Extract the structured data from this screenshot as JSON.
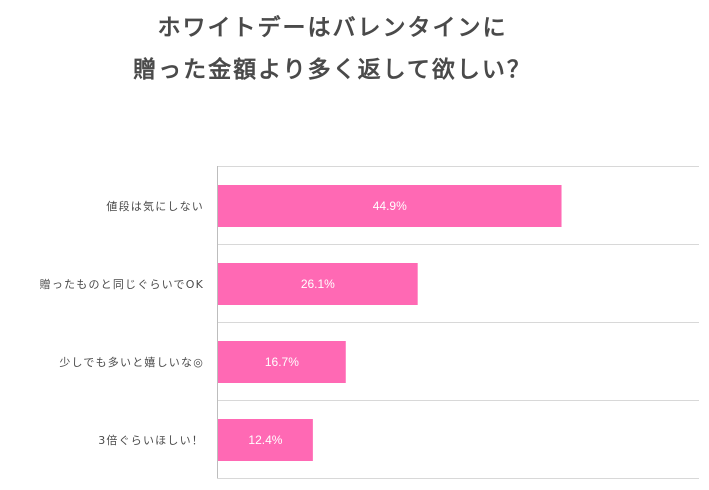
{
  "title_lines": [
    "ホワイトデーはバレンタインに",
    "贈った金額より多く返して欲しい？"
  ],
  "chart_data": {
    "type": "bar",
    "orientation": "horizontal",
    "categories": [
      "値段は気にしない",
      "贈ったものと同じぐらいでOK",
      "少しでも多いと嬉しいな◎",
      "3倍ぐらいほしい！"
    ],
    "values": [
      44.9,
      26.1,
      16.7,
      12.4
    ],
    "value_labels": [
      "44.9%",
      "26.1%",
      "16.7%",
      "12.4%"
    ],
    "unit": "%",
    "xlim": [
      0,
      63
    ],
    "grid": true,
    "legend": "none",
    "colors": {
      "bar": "#ff69b4",
      "grid": "#d8d8d8",
      "axis": "#bdbdbd",
      "category_text": "#4a4a4a",
      "value_text": "#ffffff"
    }
  }
}
